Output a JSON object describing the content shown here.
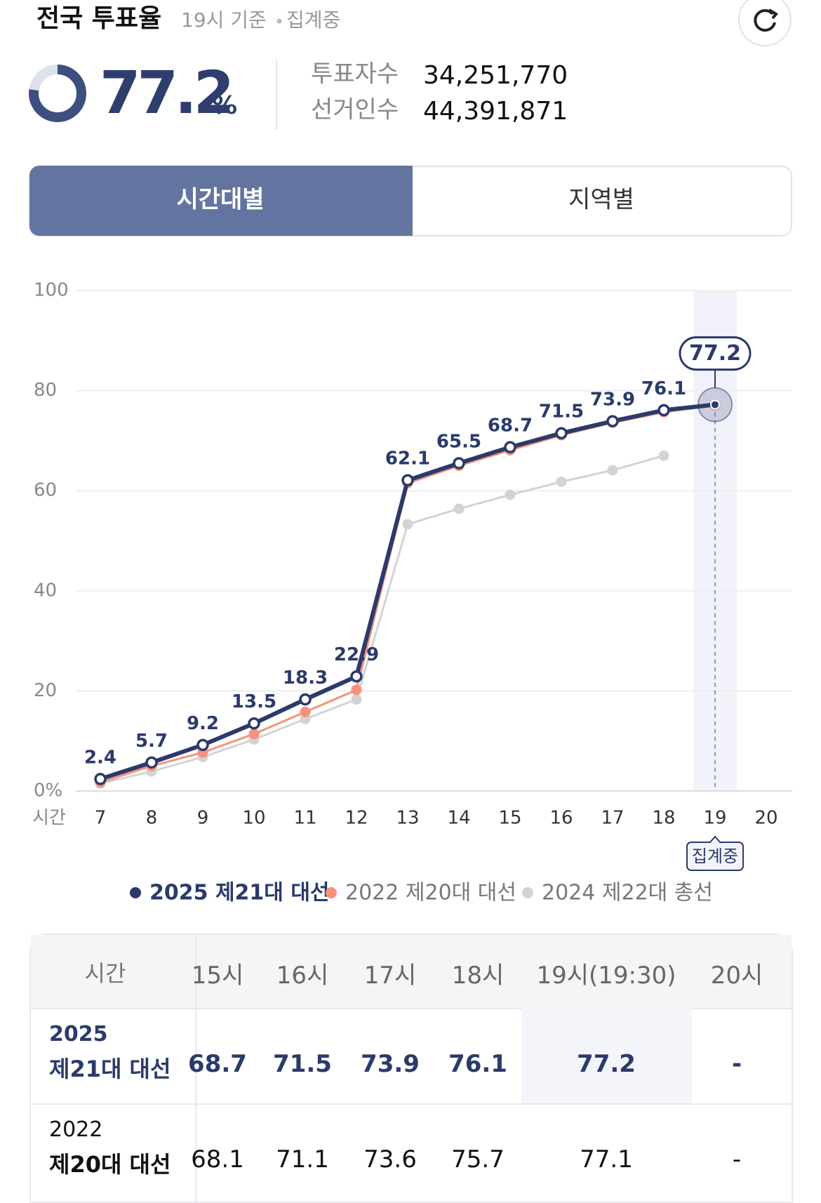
{
  "header": {
    "title": "전국 투표율",
    "basis": "19시 기준",
    "status": "집계중",
    "rate": 77.2,
    "rate_unit": "%",
    "voters_label": "투표자수",
    "voters": "34,251,770",
    "electorate_label": "선거인수",
    "electorate": "44,391,871"
  },
  "tabs": [
    "시간대별",
    "지역별"
  ],
  "chart_data": {
    "type": "line",
    "x_label": "시간",
    "categories": [
      "7",
      "8",
      "9",
      "10",
      "11",
      "12",
      "13",
      "14",
      "15",
      "16",
      "17",
      "18",
      "19",
      "20"
    ],
    "series": [
      {
        "name": "2025 제21대 대선",
        "color": "#2b3a6b",
        "values": [
          2.4,
          5.7,
          9.2,
          13.5,
          18.3,
          22.9,
          62.1,
          65.5,
          68.7,
          71.5,
          73.9,
          76.1,
          77.2,
          null
        ]
      },
      {
        "name": "2022 제20대 대선",
        "color": "#f4937a",
        "values": [
          1.7,
          5.0,
          7.7,
          11.4,
          15.8,
          20.2,
          61.5,
          65.0,
          68.1,
          71.1,
          73.6,
          75.7,
          77.1,
          null
        ]
      },
      {
        "name": "2024 제22대 총선",
        "color": "#d3d3d3",
        "values": [
          1.5,
          3.9,
          6.8,
          10.3,
          14.4,
          18.3,
          53.3,
          56.4,
          59.2,
          61.8,
          64.1,
          67.0,
          null,
          null
        ]
      }
    ],
    "ylim": [
      0,
      100
    ],
    "yticks": [
      {
        "value": 0,
        "label": "0%"
      },
      20,
      40,
      60,
      80,
      100
    ],
    "grid": true,
    "badge": "집계중"
  },
  "table": {
    "header": [
      "시간",
      "15시",
      "16시",
      "17시",
      "18시",
      "19시(19:30)",
      "20시"
    ],
    "rows": [
      {
        "year": "2025",
        "name": "제21대 대선",
        "cells": [
          "68.7",
          "71.5",
          "73.9",
          "76.1",
          "77.2",
          "-"
        ]
      },
      {
        "year": "2022",
        "name": "제20대 대선",
        "cells": [
          "68.1",
          "71.1",
          "73.6",
          "75.7",
          "77.1",
          "-"
        ]
      }
    ]
  }
}
